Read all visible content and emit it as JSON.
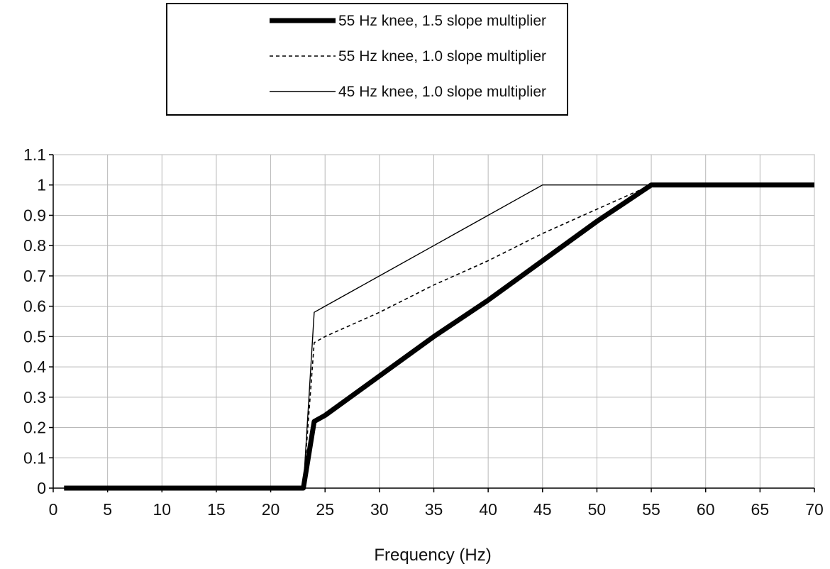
{
  "chart_data": {
    "type": "line",
    "title": "",
    "xlabel": "Frequency (Hz)",
    "ylabel": "",
    "xlim": [
      0,
      70
    ],
    "ylim": [
      0,
      1.1
    ],
    "x_ticks": [
      0,
      5,
      10,
      15,
      20,
      25,
      30,
      35,
      40,
      45,
      50,
      55,
      60,
      65,
      70
    ],
    "y_ticks": [
      0,
      0.1,
      0.2,
      0.3,
      0.4,
      0.5,
      0.6,
      0.7,
      0.8,
      0.9,
      1,
      1.1
    ],
    "grid": true,
    "legend_position": "top-center",
    "series": [
      {
        "name": "55 Hz knee, 1.5 slope multiplier",
        "style": "thick-solid",
        "color": "#000000",
        "points": [
          [
            1,
            0
          ],
          [
            23,
            0
          ],
          [
            24,
            0.22
          ],
          [
            25,
            0.24
          ],
          [
            30,
            0.37
          ],
          [
            35,
            0.5
          ],
          [
            40,
            0.62
          ],
          [
            45,
            0.75
          ],
          [
            50,
            0.88
          ],
          [
            55,
            1
          ],
          [
            70,
            1
          ]
        ]
      },
      {
        "name": "55 Hz knee, 1.0 slope multiplier",
        "style": "dashed",
        "color": "#000000",
        "points": [
          [
            1,
            0
          ],
          [
            23,
            0
          ],
          [
            24,
            0.48
          ],
          [
            25,
            0.5
          ],
          [
            30,
            0.58
          ],
          [
            35,
            0.67
          ],
          [
            40,
            0.75
          ],
          [
            45,
            0.84
          ],
          [
            50,
            0.92
          ],
          [
            55,
            1
          ],
          [
            70,
            1
          ]
        ]
      },
      {
        "name": "45 Hz knee, 1.0 slope multiplier",
        "style": "thin-solid",
        "color": "#000000",
        "points": [
          [
            1,
            0
          ],
          [
            23,
            0
          ],
          [
            24,
            0.58
          ],
          [
            25,
            0.6
          ],
          [
            30,
            0.7
          ],
          [
            35,
            0.8
          ],
          [
            40,
            0.9
          ],
          [
            43,
            0.96
          ],
          [
            45,
            1
          ],
          [
            70,
            1
          ]
        ]
      }
    ]
  }
}
